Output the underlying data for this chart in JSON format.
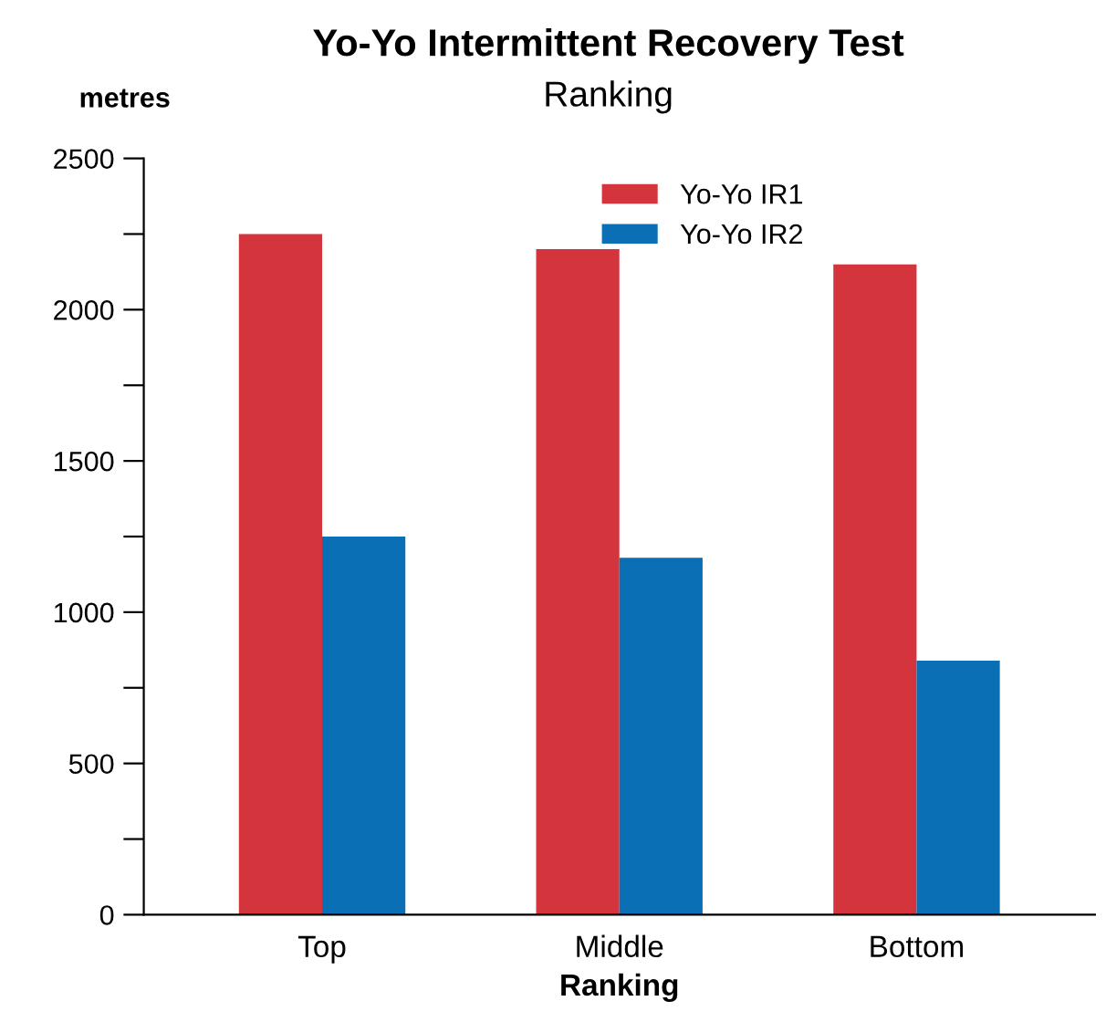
{
  "chart_data": {
    "type": "bar",
    "title": "Yo-Yo Intermittent Recovery Test",
    "subtitle": "Ranking",
    "xlabel": "Ranking",
    "ylabel": "metres",
    "categories": [
      "Top",
      "Middle",
      "Bottom"
    ],
    "series": [
      {
        "name": "Yo-Yo IR1",
        "color": "#d4343c",
        "values": [
          2250,
          2200,
          2150
        ]
      },
      {
        "name": "Yo-Yo IR2",
        "color": "#0a6fb4",
        "values": [
          1250,
          1180,
          840
        ]
      }
    ],
    "ylim": [
      0,
      2500
    ],
    "yticks": [
      0,
      {
        "value": 250,
        "label": null
      },
      500,
      {
        "value": 750,
        "label": null
      },
      1000,
      {
        "value": 1250,
        "label": null
      },
      1500,
      {
        "value": 1750,
        "label": null
      },
      2000,
      {
        "value": 2250,
        "label": null
      },
      2500
    ],
    "grid": false,
    "legend": "top right"
  }
}
